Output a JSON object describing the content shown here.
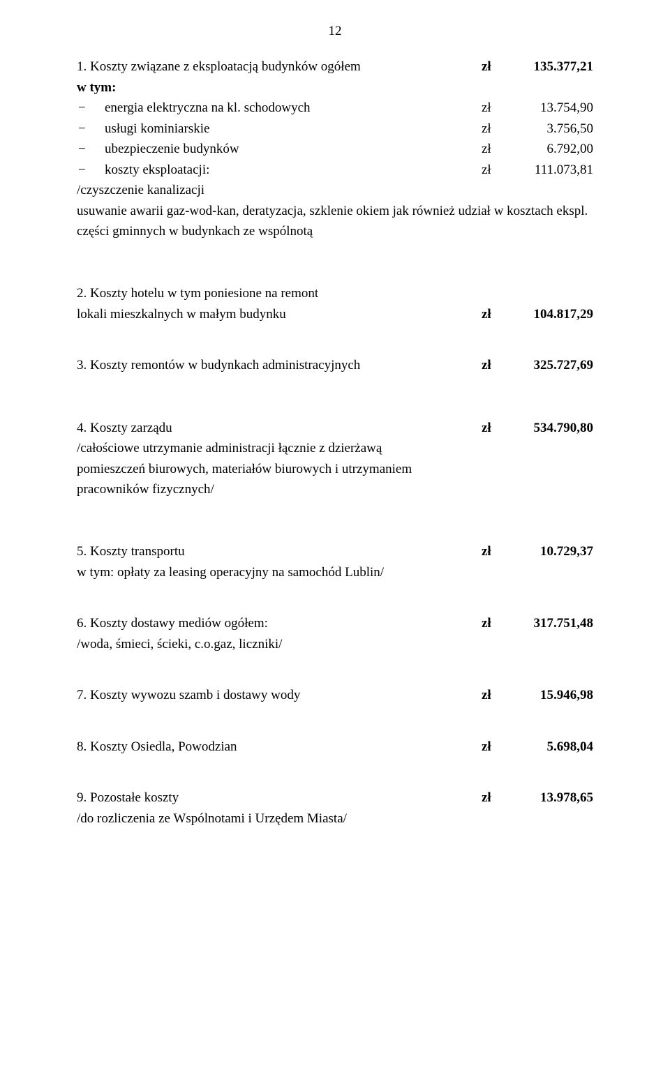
{
  "pagenum": "12",
  "currency": "zł",
  "item1": {
    "title": "1. Koszty związane z eksploatacją budynków ogółem",
    "amount": "135.377,21",
    "wtym": "w tym:",
    "sub": [
      {
        "label": "energia elektryczna na kl. schodowych",
        "amount": "13.754,90"
      },
      {
        "label": "usługi kominiarskie",
        "amount": "3.756,50"
      },
      {
        "label": "ubezpieczenie budynków",
        "amount": "6.792,00"
      },
      {
        "label": "koszty eksploatacji:",
        "amount": "111.073,81"
      }
    ],
    "note1": "/czyszczenie kanalizacji",
    "note2": "usuwanie awarii gaz-wod-kan, deratyzacja, szklenie okiem jak również udział w kosztach ekspl.",
    "note3": "części gminnych w budynkach ze wspólnotą"
  },
  "item2": {
    "line1": "2. Koszty hotelu w tym poniesione na remont",
    "line2": "lokali mieszkalnych w małym budynku",
    "amount": "104.817,29"
  },
  "item3": {
    "title": "3. Koszty remontów w budynkach administracyjnych",
    "amount": "325.727,69"
  },
  "item4": {
    "title": "4. Koszty zarządu",
    "amount": "534.790,80",
    "note1": "/całościowe utrzymanie administracji łącznie z dzierżawą",
    "note2": "pomieszczeń biurowych, materiałów biurowych i utrzymaniem",
    "note3": "pracowników fizycznych/"
  },
  "item5": {
    "title": "5. Koszty transportu",
    "amount": "10.729,37",
    "note": "w tym: opłaty za leasing operacyjny na samochód Lublin/"
  },
  "item6": {
    "title": "6. Koszty dostawy mediów ogółem:",
    "amount": "317.751,48",
    "note": "/woda, śmieci, ścieki, c.o.gaz, liczniki/"
  },
  "item7": {
    "title": "7. Koszty wywozu szamb i dostawy wody",
    "amount": "15.946,98"
  },
  "item8": {
    "title": "8. Koszty Osiedla, Powodzian",
    "amount": "5.698,04"
  },
  "item9": {
    "title": "9. Pozostałe koszty",
    "amount": "13.978,65",
    "note": "/do rozliczenia ze Wspólnotami i Urzędem Miasta/"
  }
}
